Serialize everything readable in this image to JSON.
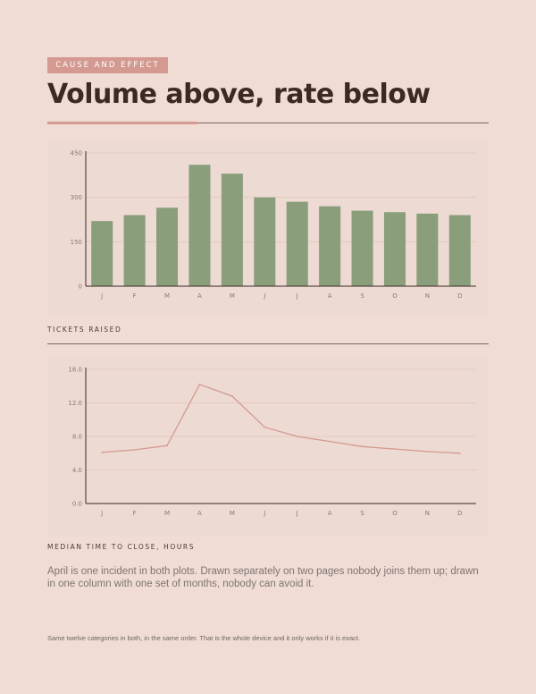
{
  "header": {
    "kicker": "CAUSE AND EFFECT",
    "title": "Volume above, rate below"
  },
  "colors": {
    "bar": "#8a9e7b",
    "line": "#d49a92",
    "accent": "#d49a92",
    "panel": "#eddad2",
    "page": "#f0dcd4"
  },
  "captions": {
    "top": "TICKETS RAISED",
    "bottom": "MEDIAN TIME TO CLOSE, HOURS"
  },
  "body_text": "April is one incident in both plots. Drawn separately on two pages nobody joins them up; drawn in one column with one set of months, nobody can avoid it.",
  "footnote": "Same twelve categories in both, in the same order. That is the whole device and it only works if it is exact.",
  "chart_data": [
    {
      "type": "bar",
      "categories": [
        "J",
        "F",
        "M",
        "A",
        "M",
        "J",
        "J",
        "A",
        "S",
        "O",
        "N",
        "D"
      ],
      "values": [
        220,
        240,
        265,
        410,
        380,
        300,
        285,
        270,
        255,
        250,
        245,
        240
      ],
      "yticks": [
        "0",
        "150",
        "300",
        "450"
      ],
      "ylim": [
        0,
        450
      ],
      "grid": true
    },
    {
      "type": "line",
      "categories": [
        "J",
        "F",
        "M",
        "A",
        "M",
        "J",
        "J",
        "A",
        "S",
        "O",
        "N",
        "D"
      ],
      "values": [
        6.1,
        6.4,
        6.9,
        14.2,
        12.8,
        9.1,
        8.0,
        7.4,
        6.8,
        6.5,
        6.2,
        6.0
      ],
      "yticks": [
        "0.0",
        "4.0",
        "8.0",
        "12.0",
        "16.0"
      ],
      "ylim": [
        0,
        16
      ],
      "grid": true
    }
  ]
}
